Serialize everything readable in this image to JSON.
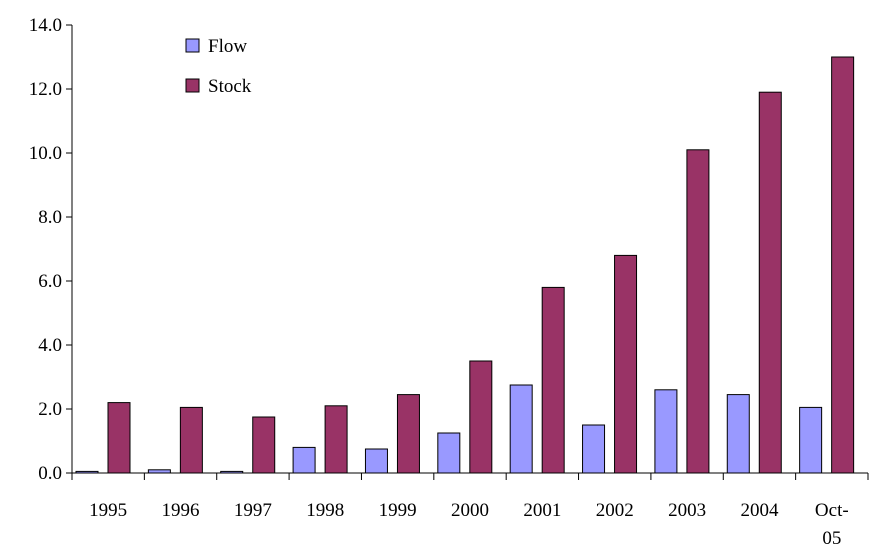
{
  "chart_data": {
    "type": "bar",
    "title": "",
    "xlabel": "",
    "ylabel": "",
    "categories": [
      "1995",
      "1996",
      "1997",
      "1998",
      "1999",
      "2000",
      "2001",
      "2002",
      "2003",
      "2004",
      "Oct-05"
    ],
    "category_lines": [
      [
        "1995"
      ],
      [
        "1996"
      ],
      [
        "1997"
      ],
      [
        "1998"
      ],
      [
        "1999"
      ],
      [
        "2000"
      ],
      [
        "2001"
      ],
      [
        "2002"
      ],
      [
        "2003"
      ],
      [
        "2004"
      ],
      [
        "Oct-",
        "05"
      ]
    ],
    "series": [
      {
        "name": "Flow",
        "color": "#9999ff",
        "values": [
          0.05,
          0.1,
          0.05,
          0.8,
          0.75,
          1.25,
          2.75,
          1.5,
          2.6,
          2.45,
          2.05
        ]
      },
      {
        "name": "Stock",
        "color": "#993366",
        "values": [
          2.2,
          2.05,
          1.75,
          2.1,
          2.45,
          3.5,
          5.8,
          6.8,
          10.1,
          11.9,
          13.0
        ]
      }
    ],
    "ylim": [
      0,
      14
    ],
    "yticks": [
      "0.0",
      "2.0",
      "4.0",
      "6.0",
      "8.0",
      "10.0",
      "12.0",
      "14.0"
    ],
    "grid": false,
    "legend_position": "top-left"
  }
}
